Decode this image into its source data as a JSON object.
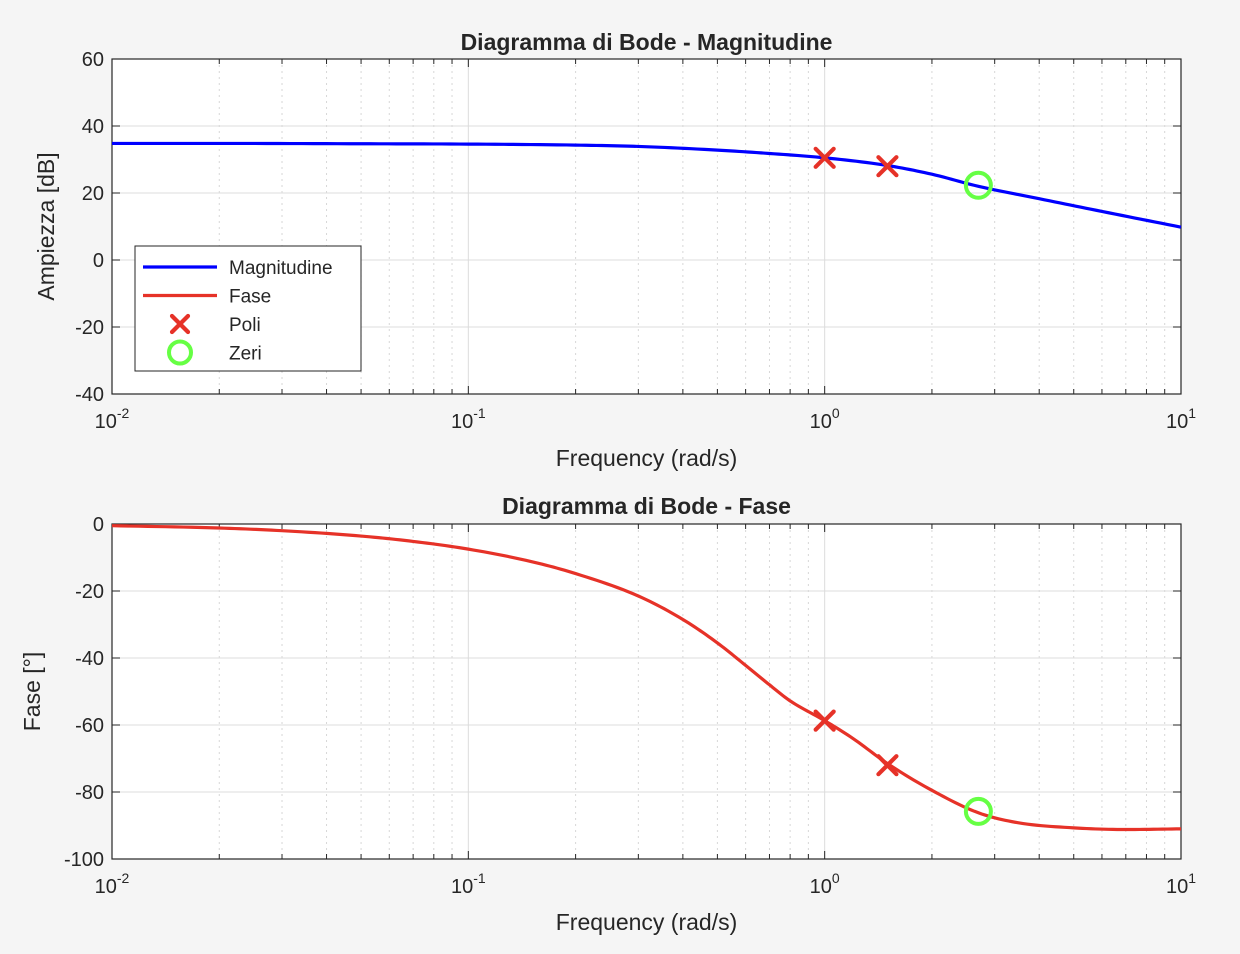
{
  "chart_data": [
    {
      "type": "line",
      "title": "Diagramma di Bode - Magnitudine",
      "xlabel": "Frequency (rad/s)",
      "ylabel": "Ampiezza [dB]",
      "xscale": "log",
      "xlim": [
        0.01,
        10
      ],
      "ylim": [
        -40,
        60
      ],
      "xticks": [
        {
          "base": "10",
          "exp": "-2"
        },
        {
          "base": "10",
          "exp": "-1"
        },
        {
          "base": "10",
          "exp": "0"
        },
        {
          "base": "10",
          "exp": "1"
        }
      ],
      "yticks": [
        "60",
        "40",
        "20",
        "0",
        "-20",
        "-40"
      ],
      "grid": true,
      "legend_placement": "lower-left",
      "series": [
        {
          "name": "Magnitudine",
          "kind": "line",
          "color": "#0000ff",
          "x": [
            0.01,
            0.02,
            0.05,
            0.1,
            0.2,
            0.3,
            0.5,
            0.7,
            1.0,
            1.5,
            2.0,
            2.7,
            4.0,
            6.0,
            10.0
          ],
          "y": [
            34.8,
            34.8,
            34.7,
            34.6,
            34.3,
            33.9,
            32.8,
            31.8,
            30.5,
            28.2,
            25.6,
            22.0,
            18.3,
            14.5,
            9.8
          ]
        },
        {
          "name": "Poli",
          "kind": "marker",
          "marker": "x",
          "color": "#e63228",
          "x": [
            1.0,
            1.5
          ],
          "y": [
            30.5,
            28.0
          ]
        },
        {
          "name": "Zeri",
          "kind": "marker",
          "marker": "o",
          "color": "#66ff44",
          "x": [
            2.7
          ],
          "y": [
            22.3
          ]
        }
      ],
      "legend": [
        {
          "label": "Magnitudine",
          "kind": "line",
          "color": "#0000ff"
        },
        {
          "label": "Fase",
          "kind": "line",
          "color": "#e63228"
        },
        {
          "label": "Poli",
          "kind": "x",
          "color": "#e63228"
        },
        {
          "label": "Zeri",
          "kind": "o",
          "color": "#66ff44"
        }
      ]
    },
    {
      "type": "line",
      "title": "Diagramma di Bode - Fase",
      "xlabel": "Frequency (rad/s)",
      "ylabel": "Fase [°]",
      "xscale": "log",
      "xlim": [
        0.01,
        10
      ],
      "ylim": [
        -100,
        0
      ],
      "xticks": [
        {
          "base": "10",
          "exp": "-2"
        },
        {
          "base": "10",
          "exp": "-1"
        },
        {
          "base": "10",
          "exp": "0"
        },
        {
          "base": "10",
          "exp": "1"
        }
      ],
      "yticks": [
        "0",
        "-20",
        "-40",
        "-60",
        "-80",
        "-100"
      ],
      "grid": true,
      "series": [
        {
          "name": "Fase",
          "kind": "line",
          "color": "#e63228",
          "x": [
            0.01,
            0.02,
            0.03,
            0.05,
            0.07,
            0.1,
            0.15,
            0.2,
            0.3,
            0.4,
            0.5,
            0.6,
            0.7,
            0.8,
            1.0,
            1.2,
            1.5,
            2.0,
            2.7,
            3.5,
            5.0,
            7.0,
            10.0
          ],
          "y": [
            -0.5,
            -1.2,
            -2.0,
            -3.6,
            -5.2,
            -7.5,
            -11.2,
            -14.8,
            -21.5,
            -28.5,
            -35.5,
            -42.2,
            -48.0,
            -52.8,
            -58.7,
            -64.0,
            -71.5,
            -79.5,
            -86.2,
            -89.2,
            -90.7,
            -91.2,
            -91.0
          ]
        },
        {
          "name": "Poli",
          "kind": "marker",
          "marker": "x",
          "color": "#e63228",
          "x": [
            1.0,
            1.5
          ],
          "y": [
            -58.7,
            -72.0
          ]
        },
        {
          "name": "Zeri",
          "kind": "marker",
          "marker": "o",
          "color": "#66ff44",
          "x": [
            2.7
          ],
          "y": [
            -85.8
          ]
        }
      ]
    }
  ]
}
